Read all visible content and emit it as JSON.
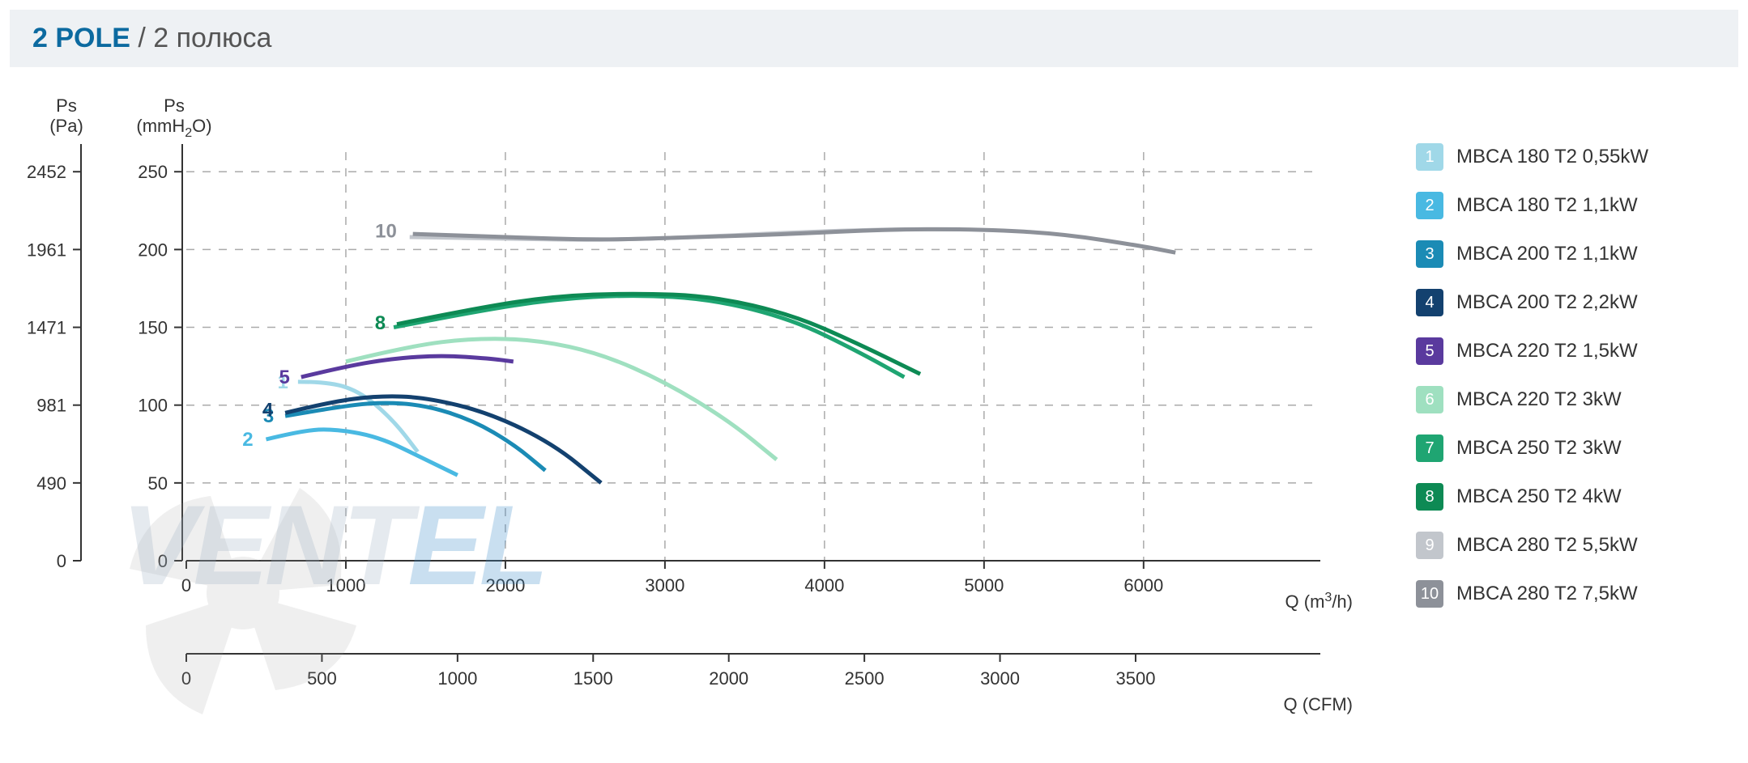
{
  "title": {
    "main": "2 POLE",
    "separator": " / ",
    "sub": "2 полюса"
  },
  "chart": {
    "type": "line",
    "background_color": "#ffffff",
    "grid_color": "#aaaaaa",
    "y_axes": [
      {
        "label": "Ps\n(Pa)",
        "ticks": [
          "0",
          "490",
          "981",
          "1471",
          "1961",
          "2452"
        ],
        "tick_values": [
          0,
          50,
          100,
          150,
          200,
          250
        ]
      },
      {
        "label": "Ps\n(mmH₂O)",
        "ticks": [
          "0",
          "50",
          "100",
          "150",
          "200",
          "250"
        ],
        "tick_values": [
          0,
          50,
          100,
          150,
          200,
          250
        ]
      }
    ],
    "x_axes": [
      {
        "label": "Q (m³/h)",
        "ticks": [
          "0",
          "1000",
          "2000",
          "3000",
          "4000",
          "5000",
          "6000"
        ],
        "tick_values": [
          0,
          1000,
          2000,
          3000,
          4000,
          5000,
          6000
        ]
      },
      {
        "label": "Q (CFM)",
        "ticks": [
          "0",
          "500",
          "1000",
          "1500",
          "2000",
          "2500",
          "3000",
          "3500"
        ],
        "tick_values": [
          0,
          850,
          1700,
          2550,
          3400,
          4250,
          5100,
          5950
        ]
      }
    ],
    "ylim": [
      0,
      260
    ],
    "xlim": [
      0,
      6600
    ],
    "series": [
      {
        "id": "1",
        "label": "MBCA 180 T2 0,55kW",
        "color": "#a0d8e8",
        "points": [
          [
            700,
            115
          ],
          [
            900,
            115
          ],
          [
            1100,
            108
          ],
          [
            1300,
            90
          ],
          [
            1450,
            70
          ]
        ],
        "label_xy": [
          690,
          115
        ]
      },
      {
        "id": "2",
        "label": "MBCA 180 T2 1,1kW",
        "color": "#49b9e2",
        "points": [
          [
            500,
            78
          ],
          [
            700,
            83
          ],
          [
            900,
            85
          ],
          [
            1200,
            80
          ],
          [
            1500,
            65
          ],
          [
            1700,
            55
          ]
        ],
        "label_xy": [
          470,
          78
        ]
      },
      {
        "id": "3",
        "label": "MBCA 200 T2 1,1kW",
        "color": "#1b8bb5",
        "points": [
          [
            620,
            93
          ],
          [
            900,
            98
          ],
          [
            1200,
            102
          ],
          [
            1500,
            100
          ],
          [
            1800,
            90
          ],
          [
            2050,
            75
          ],
          [
            2250,
            58
          ]
        ],
        "label_xy": [
          600,
          93
        ]
      },
      {
        "id": "4",
        "label": "MBCA 200 T2 2,2kW",
        "color": "#13416f",
        "points": [
          [
            620,
            95
          ],
          [
            900,
            102
          ],
          [
            1200,
            106
          ],
          [
            1500,
            105
          ],
          [
            1900,
            95
          ],
          [
            2300,
            75
          ],
          [
            2600,
            50
          ]
        ],
        "label_xy": [
          595,
          97
        ]
      },
      {
        "id": "5",
        "label": "MBCA 220 T2 1,5kW",
        "color": "#5a3a9e",
        "points": [
          [
            720,
            118
          ],
          [
            1000,
            125
          ],
          [
            1300,
            130
          ],
          [
            1600,
            132
          ],
          [
            1900,
            130
          ],
          [
            2050,
            128
          ]
        ],
        "label_xy": [
          700,
          118
        ]
      },
      {
        "id": "6",
        "label": "MBCA 220 T2 3kW",
        "color": "#9fe0c0",
        "points": [
          [
            1000,
            128
          ],
          [
            1400,
            138
          ],
          [
            1800,
            143
          ],
          [
            2200,
            142
          ],
          [
            2600,
            133
          ],
          [
            3000,
            115
          ],
          [
            3400,
            90
          ],
          [
            3700,
            65
          ]
        ],
        "label_xy": [
          null,
          null
        ]
      },
      {
        "id": "7",
        "label": "MBCA 250 T2 3kW",
        "color": "#1fa572",
        "points": [
          [
            1300,
            150
          ],
          [
            1800,
            160
          ],
          [
            2300,
            168
          ],
          [
            2800,
            171
          ],
          [
            3300,
            168
          ],
          [
            3800,
            155
          ],
          [
            4200,
            135
          ],
          [
            4500,
            118
          ]
        ],
        "label_xy": [
          null,
          null
        ]
      },
      {
        "id": "8",
        "label": "MBCA 250 T2 4kW",
        "color": "#0d8a54",
        "points": [
          [
            1320,
            152
          ],
          [
            1800,
            162
          ],
          [
            2300,
            170
          ],
          [
            2800,
            172
          ],
          [
            3300,
            170
          ],
          [
            3800,
            158
          ],
          [
            4200,
            140
          ],
          [
            4600,
            120
          ]
        ],
        "label_xy": [
          1300,
          153
        ]
      },
      {
        "id": "9",
        "label": "MBCA 280 T2 5,5kW",
        "color": "#c2c6cc",
        "points": [
          [
            1400,
            208
          ],
          [
            2000,
            207
          ],
          [
            2600,
            206
          ],
          [
            3200,
            208
          ],
          [
            3800,
            211
          ],
          [
            4400,
            213
          ],
          [
            4850,
            213
          ]
        ],
        "label_xy": [
          null,
          null
        ]
      },
      {
        "id": "10",
        "label": "MBCA 280 T2 7,5kW",
        "color": "#8d9199",
        "points": [
          [
            1420,
            210
          ],
          [
            2000,
            208
          ],
          [
            2600,
            206
          ],
          [
            3200,
            208
          ],
          [
            3800,
            210
          ],
          [
            4400,
            213
          ],
          [
            5000,
            213
          ],
          [
            5500,
            210
          ],
          [
            6000,
            202
          ],
          [
            6200,
            198
          ]
        ],
        "label_xy": [
          1370,
          212
        ]
      }
    ]
  },
  "legend_title_fontsize": 24,
  "watermark_text": "VENTEL"
}
